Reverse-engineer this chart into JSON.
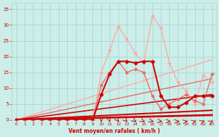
{
  "bg_color": "#cceee8",
  "grid_color": "#aad4ce",
  "xlabel": "Vent moyen/en rafales ( km/h )",
  "tick_color": "#cc0000",
  "xlim": [
    -0.5,
    23.5
  ],
  "ylim": [
    0,
    37
  ],
  "yticks": [
    0,
    5,
    10,
    15,
    20,
    25,
    30,
    35
  ],
  "xticks": [
    0,
    1,
    2,
    3,
    4,
    5,
    6,
    7,
    8,
    9,
    10,
    11,
    12,
    13,
    14,
    15,
    16,
    17,
    18,
    19,
    20,
    21,
    22,
    23
  ],
  "series": [
    {
      "x": [
        0,
        1,
        2,
        3,
        4,
        5,
        6,
        7,
        8,
        9,
        10,
        11,
        12,
        13,
        14,
        15,
        16,
        17,
        18,
        19,
        20,
        21,
        22,
        23
      ],
      "y": [
        0,
        0,
        0,
        0,
        0,
        0,
        0,
        0,
        0,
        0,
        15,
        22,
        29.5,
        25.5,
        21,
        18,
        33,
        29,
        18,
        12,
        9,
        5,
        14,
        12
      ],
      "color": "#ffaaaa",
      "lw": 1.0,
      "marker": "D",
      "ms": 2.0
    },
    {
      "x": [
        0,
        1,
        2,
        3,
        4,
        5,
        6,
        7,
        8,
        9,
        10,
        11,
        12,
        13,
        14,
        15,
        16,
        17,
        18,
        19,
        20,
        21,
        22,
        23
      ],
      "y": [
        0,
        0,
        0,
        0,
        0,
        0,
        0,
        0,
        0,
        0,
        11,
        15,
        18.5,
        15,
        16,
        15,
        7.5,
        3.5,
        5,
        6.5,
        8,
        6,
        5,
        14.5
      ],
      "color": "#ee6666",
      "lw": 1.0,
      "marker": "D",
      "ms": 2.0
    },
    {
      "x": [
        0,
        1,
        2,
        3,
        4,
        5,
        6,
        7,
        8,
        9,
        10,
        11,
        12,
        13,
        14,
        15,
        16,
        17,
        18,
        19,
        20,
        21,
        22,
        23
      ],
      "y": [
        0,
        0,
        0,
        0,
        0,
        0,
        0,
        0,
        0,
        0,
        8,
        14.5,
        18.5,
        18.5,
        18,
        18.5,
        18.5,
        7.5,
        4,
        4,
        5.5,
        7.5,
        7.5,
        7.5
      ],
      "color": "#cc0000",
      "lw": 1.5,
      "marker": "D",
      "ms": 2.5
    },
    {
      "x": [
        0,
        23
      ],
      "y": [
        0,
        19
      ],
      "color": "#ffaaaa",
      "lw": 1.0,
      "marker": null,
      "ms": 0
    },
    {
      "x": [
        0,
        23
      ],
      "y": [
        0,
        13
      ],
      "color": "#ee6666",
      "lw": 1.0,
      "marker": null,
      "ms": 0
    },
    {
      "x": [
        0,
        23
      ],
      "y": [
        0,
        8
      ],
      "color": "#cc0000",
      "lw": 1.2,
      "marker": null,
      "ms": 0
    },
    {
      "x": [
        0,
        23
      ],
      "y": [
        0,
        3
      ],
      "color": "#cc0000",
      "lw": 1.5,
      "marker": null,
      "ms": 0
    },
    {
      "x": [
        0,
        23
      ],
      "y": [
        0,
        1.5
      ],
      "color": "#cc0000",
      "lw": 2.0,
      "marker": null,
      "ms": 0
    }
  ]
}
